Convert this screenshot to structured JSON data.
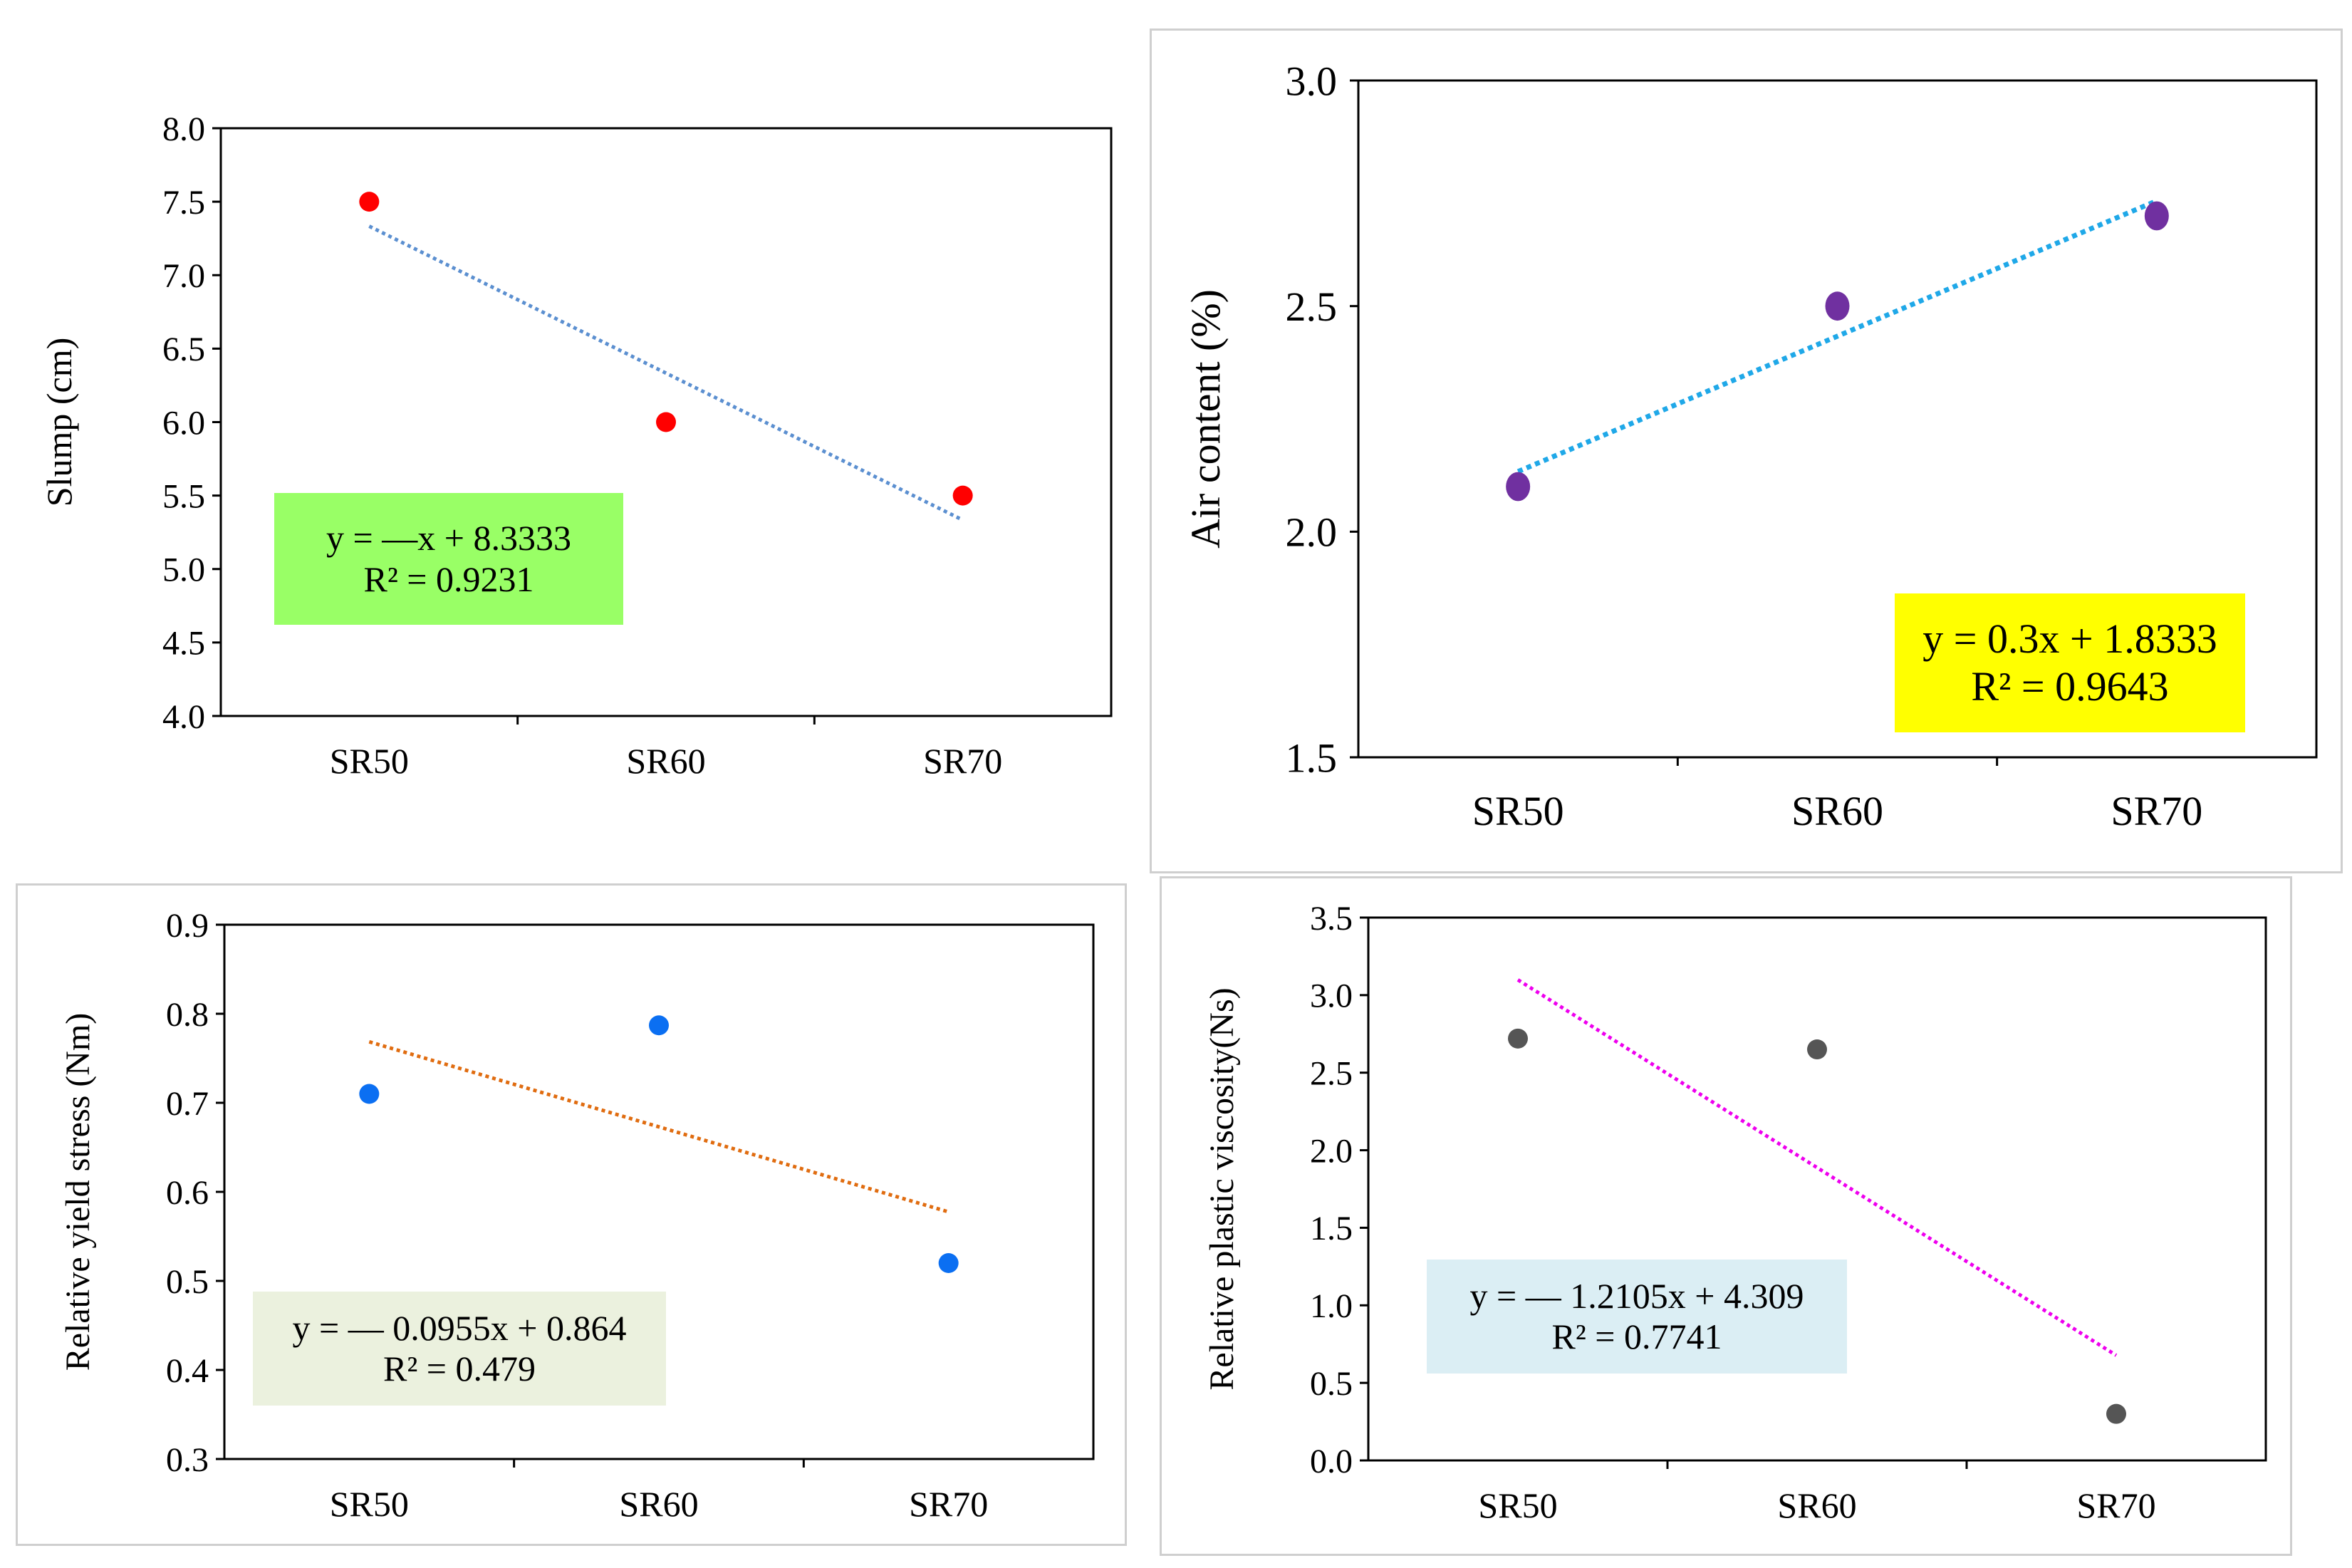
{
  "chart_data": [
    {
      "type": "scatter",
      "categories": [
        "SR50",
        "SR60",
        "SR70"
      ],
      "values": [
        7.5,
        6.0,
        5.5
      ],
      "ylabel": "Slump (cm)",
      "ylim": [
        4.0,
        8.0
      ],
      "yticks": [
        "4.0",
        "4.5",
        "5.0",
        "5.5",
        "6.0",
        "6.5",
        "7.0",
        "7.5",
        "8.0"
      ],
      "trendline": {
        "slope": -1,
        "intercept": 8.3333,
        "style": "dotted"
      },
      "equation": "y = —x + 8.3333",
      "r2": "R² = 0.9231",
      "colors": {
        "marker": "#ff0000",
        "trend": "#5b8fd0",
        "box": "#99ff66"
      }
    },
    {
      "type": "scatter",
      "categories": [
        "SR50",
        "SR60",
        "SR70"
      ],
      "values": [
        2.1,
        2.5,
        2.7
      ],
      "ylabel": "Air content (%)",
      "ylim": [
        1.5,
        3.0
      ],
      "yticks": [
        "1.5",
        "2.0",
        "2.5",
        "3.0"
      ],
      "trendline": {
        "slope": 0.3,
        "intercept": 1.8333,
        "style": "dotted"
      },
      "equation": "y = 0.3x + 1.8333",
      "r2": "R² = 0.9643",
      "colors": {
        "marker": "#7030a0",
        "trend": "#1fa8e8",
        "box": "#ffff00"
      }
    },
    {
      "type": "scatter",
      "categories": [
        "SR50",
        "SR60",
        "SR70"
      ],
      "values": [
        0.71,
        0.787,
        0.52
      ],
      "ylabel": "Relative yield stress (Nm)",
      "ylim": [
        0.3,
        0.9
      ],
      "yticks": [
        "0.3",
        "0.4",
        "0.5",
        "0.6",
        "0.7",
        "0.8",
        "0.9"
      ],
      "trendline": {
        "slope": -0.0955,
        "intercept": 0.864,
        "style": "dotted"
      },
      "equation": "y = — 0.0955x + 0.864",
      "r2": "R² = 0.479",
      "colors": {
        "marker": "#0b6ff2",
        "trend": "#e06c10",
        "box": "#ebf1de"
      }
    },
    {
      "type": "scatter",
      "categories": [
        "SR50",
        "SR60",
        "SR70"
      ],
      "values": [
        2.72,
        2.65,
        0.3
      ],
      "ylabel": "Relative plastic viscosity(Ns)",
      "ylim": [
        0.0,
        3.5
      ],
      "yticks": [
        "0.0",
        "0.5",
        "1.0",
        "1.5",
        "2.0",
        "2.5",
        "3.0",
        "3.5"
      ],
      "trendline": {
        "slope": -1.2105,
        "intercept": 4.309,
        "style": "dotted"
      },
      "equation": "y = — 1.2105x + 4.309",
      "r2": "R² = 0.7741",
      "colors": {
        "marker": "#555555",
        "trend": "#ee00ee",
        "box": "#dbeef4"
      }
    }
  ]
}
